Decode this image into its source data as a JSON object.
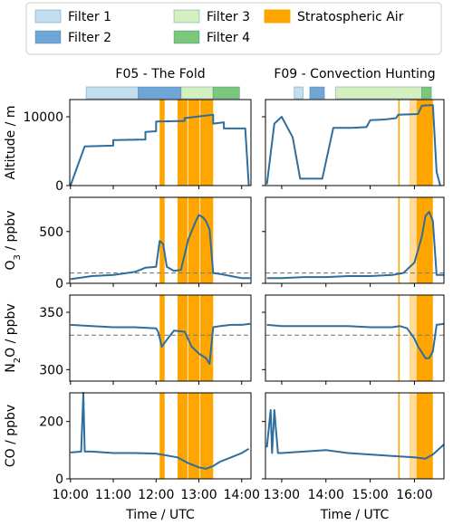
{
  "legend": {
    "position": "top",
    "entries": [
      {
        "label": "Filter 1",
        "color": "#c5deef"
      },
      {
        "label": "Filter 2",
        "color": "#6fa6d6"
      },
      {
        "label": "Filter 3",
        "color": "#d4f0bf"
      },
      {
        "label": "Filter 4",
        "color": "#7cc87a"
      },
      {
        "label": "Stratospheric Air",
        "color": "#ffa500"
      }
    ]
  },
  "colors": {
    "line": "#2e6e9e",
    "reference_dash": "#808080",
    "strat_light": "#ffd27f"
  },
  "chart_data": [
    {
      "title": "F05 - The Fold",
      "xlabel": "Time / UTC",
      "x_ticks": [
        "10:00",
        "11:00",
        "12:00",
        "13:00",
        "14:00"
      ],
      "x_range": [
        "09:59",
        "14:13"
      ],
      "filters": [
        {
          "filter": "Filter 1",
          "start": "10:22",
          "end": "11:35"
        },
        {
          "filter": "Filter 2",
          "start": "11:35",
          "end": "12:35"
        },
        {
          "filter": "Filter 3",
          "start": "12:35",
          "end": "13:20"
        },
        {
          "filter": "Filter 4",
          "start": "13:20",
          "end": "13:57"
        }
      ],
      "stratospheric_air": [
        {
          "start": "12:05",
          "end": "12:12"
        },
        {
          "start": "12:30",
          "end": "12:44"
        },
        {
          "start": "12:45",
          "end": "13:01"
        },
        {
          "start": "13:02",
          "end": "13:20"
        }
      ],
      "panels": [
        {
          "ylabel": "Altitude / m",
          "yticks": [
            0,
            10000
          ],
          "ylim": [
            0,
            12500
          ],
          "type": "line",
          "series": [
            {
              "x": [
                "10:00",
                "10:20",
                "10:20",
                "11:00",
                "11:00",
                "11:45",
                "11:45",
                "12:00",
                "12:00",
                "12:40",
                "12:40",
                "13:20",
                "13:20",
                "13:35",
                "13:35",
                "14:05",
                "14:10"
              ],
              "y": [
                0,
                5700,
                5700,
                5800,
                6600,
                6700,
                7800,
                7900,
                9300,
                9400,
                9800,
                10300,
                9000,
                9200,
                8300,
                8300,
                0
              ]
            }
          ]
        },
        {
          "ylabel": "O3 / ppbv",
          "yticks": [
            0,
            500
          ],
          "ylim": [
            0,
            830
          ],
          "reference_level": 100,
          "type": "line",
          "series": [
            {
              "x": [
                "10:00",
                "10:30",
                "11:00",
                "11:30",
                "11:45",
                "12:00",
                "12:05",
                "12:10",
                "12:15",
                "12:25",
                "12:35",
                "12:45",
                "12:55",
                "13:00",
                "13:05",
                "13:10",
                "13:15",
                "13:20",
                "13:30",
                "13:45",
                "14:00",
                "14:12"
              ],
              "y": [
                40,
                70,
                80,
                110,
                150,
                160,
                410,
                380,
                160,
                120,
                130,
                420,
                590,
                660,
                640,
                600,
                520,
                100,
                90,
                70,
                50,
                50
              ]
            }
          ]
        },
        {
          "ylabel": "N2O / ppbv",
          "yticks": [
            300,
            350
          ],
          "ylim": [
            290,
            365
          ],
          "reference_level": 330,
          "type": "line",
          "series": [
            {
              "x": [
                "10:00",
                "10:30",
                "11:00",
                "11:30",
                "12:00",
                "12:03",
                "12:08",
                "12:15",
                "12:25",
                "12:40",
                "12:50",
                "13:00",
                "13:10",
                "13:15",
                "13:20",
                "13:30",
                "13:45",
                "14:00",
                "14:12"
              ],
              "y": [
                339,
                338,
                337,
                337,
                336,
                333,
                320,
                326,
                334,
                333,
                320,
                314,
                310,
                305,
                337,
                338,
                339,
                339,
                340
              ]
            }
          ]
        },
        {
          "ylabel": "CO / ppbv",
          "yticks": [
            0,
            200
          ],
          "ylim": [
            0,
            300
          ],
          "type": "line",
          "series": [
            {
              "x": [
                "10:00",
                "10:15",
                "10:18",
                "10:20",
                "10:30",
                "11:00",
                "11:30",
                "12:00",
                "12:30",
                "12:45",
                "13:00",
                "13:10",
                "13:20",
                "13:30",
                "13:45",
                "14:00",
                "14:10"
              ],
              "y": [
                92,
                95,
                300,
                95,
                95,
                90,
                90,
                88,
                75,
                55,
                40,
                35,
                45,
                60,
                75,
                90,
                105
              ]
            }
          ]
        }
      ]
    },
    {
      "title": "F09 - Convection Hunting",
      "xlabel": "Time / UTC",
      "x_ticks": [
        "13:00",
        "14:00",
        "15:00",
        "16:00"
      ],
      "x_range": [
        "12:38",
        "16:40"
      ],
      "filters": [
        {
          "filter": "Filter 1",
          "start": "13:17",
          "end": "13:29"
        },
        {
          "filter": "Filter 2",
          "start": "13:38",
          "end": "13:58"
        },
        {
          "filter": "Filter 3",
          "start": "14:13",
          "end": "16:10"
        },
        {
          "filter": "Filter 4",
          "start": "16:10",
          "end": "16:23"
        }
      ],
      "stratospheric_air": [
        {
          "start": "15:38",
          "end": "15:40"
        },
        {
          "start": "15:53",
          "end": "16:13",
          "shade": "light"
        },
        {
          "start": "16:03",
          "end": "16:25"
        }
      ],
      "panels": [
        {
          "ylabel": "Altitude / m",
          "yticks": [
            0,
            10000
          ],
          "ylim": [
            0,
            12500
          ],
          "type": "line",
          "series": [
            {
              "x": [
                "12:40",
                "12:50",
                "13:00",
                "13:15",
                "13:25",
                "13:35",
                "13:55",
                "14:10",
                "14:35",
                "14:55",
                "15:00",
                "15:20",
                "15:35",
                "15:38",
                "16:05",
                "16:10",
                "16:25",
                "16:30",
                "16:35"
              ],
              "y": [
                200,
                9000,
                10000,
                7000,
                1000,
                1000,
                1000,
                8400,
                8400,
                8500,
                9500,
                9600,
                9800,
                10300,
                10400,
                11600,
                11700,
                2000,
                0
              ]
            }
          ]
        },
        {
          "ylabel": "O3 / ppbv",
          "yticks": [
            0,
            500
          ],
          "ylim": [
            0,
            830
          ],
          "reference_level": 100,
          "type": "line",
          "series": [
            {
              "x": [
                "12:40",
                "13:00",
                "13:30",
                "14:00",
                "14:30",
                "15:00",
                "15:30",
                "15:45",
                "16:00",
                "16:10",
                "16:15",
                "16:20",
                "16:25",
                "16:30",
                "16:40"
              ],
              "y": [
                50,
                50,
                60,
                60,
                70,
                70,
                80,
                100,
                200,
                450,
                650,
                690,
                600,
                80,
                80
              ]
            }
          ]
        },
        {
          "ylabel": "N2O / ppbv",
          "yticks": [
            300,
            350
          ],
          "ylim": [
            290,
            365
          ],
          "reference_level": 330,
          "type": "line",
          "series": [
            {
              "x": [
                "12:40",
                "13:00",
                "13:30",
                "14:00",
                "14:30",
                "15:00",
                "15:30",
                "15:40",
                "15:50",
                "16:00",
                "16:05",
                "16:10",
                "16:15",
                "16:20",
                "16:25",
                "16:30",
                "16:40"
              ],
              "y": [
                339,
                338,
                338,
                338,
                338,
                337,
                337,
                338,
                336,
                327,
                320,
                315,
                310,
                310,
                316,
                339,
                340
              ]
            }
          ]
        },
        {
          "ylabel": "CO / ppbv",
          "yticks": [
            0,
            200
          ],
          "ylim": [
            0,
            300
          ],
          "type": "line",
          "series": [
            {
              "x": [
                "12:40",
                "12:45",
                "12:47",
                "12:50",
                "12:55",
                "13:00",
                "13:30",
                "14:00",
                "14:30",
                "15:00",
                "15:30",
                "16:00",
                "16:15",
                "16:25",
                "16:40"
              ],
              "y": [
                110,
                240,
                90,
                240,
                90,
                90,
                95,
                100,
                90,
                85,
                80,
                75,
                70,
                85,
                120
              ]
            }
          ]
        }
      ]
    }
  ]
}
